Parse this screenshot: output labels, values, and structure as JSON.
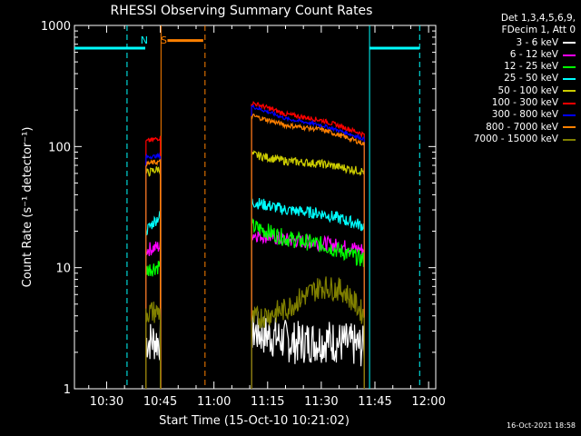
{
  "chart_data": {
    "type": "line",
    "title": "RHESSI Observing Summary Count Rates",
    "xlabel": "Start Time (15-Oct-10 10:21:02)",
    "ylabel": "Count Rate (s⁻¹ detector⁻¹)",
    "y_scale": "log",
    "ylim": [
      1,
      1000
    ],
    "y_ticks": [
      "1",
      "10",
      "100",
      "1000"
    ],
    "xlim_minutes_after_1030": [
      -9,
      92
    ],
    "x_ticks": [
      {
        "label": "10:30",
        "t": 0
      },
      {
        "label": "10:45",
        "t": 15
      },
      {
        "label": "11:00",
        "t": 30
      },
      {
        "label": "11:15",
        "t": 45
      },
      {
        "label": "11:30",
        "t": 60
      },
      {
        "label": "11:45",
        "t": 75
      },
      {
        "label": "12:00",
        "t": 90
      }
    ],
    "legend": {
      "header": [
        "Det 1,3,4,5,6,9,",
        "FDecim 1, Att 0"
      ],
      "placement": "top-right, outside plot"
    },
    "segments": [
      {
        "t_start": 11,
        "t_end": 15
      },
      {
        "t_start": 40.5,
        "t_end": 72
      }
    ],
    "series": [
      {
        "name": "3 - 6 keV",
        "color": "#ffffff",
        "noise": 0.18,
        "values": [
          [
            11,
            2.5
          ],
          [
            15,
            2.5
          ],
          [
            40.5,
            3.0
          ],
          [
            52,
            2.4
          ],
          [
            62,
            2.5
          ],
          [
            72,
            2.2
          ]
        ]
      },
      {
        "name": "6 - 12 keV",
        "color": "#ff00ff",
        "noise": 0.06,
        "values": [
          [
            11,
            14
          ],
          [
            15,
            15
          ],
          [
            40.5,
            19
          ],
          [
            50,
            17
          ],
          [
            60,
            16
          ],
          [
            72,
            14
          ]
        ]
      },
      {
        "name": "12 - 25 keV",
        "color": "#00ff00",
        "noise": 0.07,
        "values": [
          [
            11,
            9.5
          ],
          [
            15,
            10.5
          ],
          [
            40.5,
            22
          ],
          [
            50,
            17.5
          ],
          [
            60,
            15.5
          ],
          [
            72,
            11.5
          ]
        ]
      },
      {
        "name": "25 - 50 keV",
        "color": "#00ffff",
        "noise": 0.05,
        "values": [
          [
            11,
            20
          ],
          [
            15,
            27
          ],
          [
            40.5,
            35
          ],
          [
            50,
            30
          ],
          [
            60,
            28
          ],
          [
            72,
            22
          ]
        ]
      },
      {
        "name": "50 - 100 keV",
        "color": "#cccc00",
        "noise": 0.035,
        "values": [
          [
            11,
            60
          ],
          [
            15,
            66
          ],
          [
            40.5,
            86
          ],
          [
            50,
            76
          ],
          [
            60,
            72
          ],
          [
            72,
            62
          ]
        ]
      },
      {
        "name": "100 - 300 keV",
        "color": "#ff0000",
        "noise": 0.02,
        "values": [
          [
            11,
            110
          ],
          [
            15,
            118
          ],
          [
            40.5,
            230
          ],
          [
            50,
            185
          ],
          [
            60,
            165
          ],
          [
            72,
            125
          ]
        ]
      },
      {
        "name": "300 - 800 keV",
        "color": "#0000ff",
        "noise": 0.015,
        "values": [
          [
            11,
            82
          ],
          [
            15,
            84
          ],
          [
            40.5,
            215
          ],
          [
            50,
            170
          ],
          [
            60,
            150
          ],
          [
            72,
            115
          ]
        ]
      },
      {
        "name": "800 - 7000 keV",
        "color": "#ff8000",
        "noise": 0.02,
        "values": [
          [
            11,
            72
          ],
          [
            15,
            75
          ],
          [
            40.5,
            180
          ],
          [
            50,
            150
          ],
          [
            60,
            138
          ],
          [
            72,
            105
          ]
        ]
      },
      {
        "name": "7000 - 15000 keV",
        "color": "#808000",
        "noise": 0.1,
        "values": [
          [
            11,
            4.3
          ],
          [
            15,
            4.3
          ],
          [
            40.5,
            3.7
          ],
          [
            50,
            4.5
          ],
          [
            60,
            7.0
          ],
          [
            66,
            6.5
          ],
          [
            72,
            4.0
          ]
        ]
      }
    ],
    "annotations": [
      {
        "text": "N",
        "t": 10.5,
        "color": "#00ffff"
      },
      {
        "text": "S",
        "t": 16,
        "color": "#ff8000"
      }
    ],
    "night_intervals": [
      {
        "t_start": -9,
        "t_end": 10.8,
        "level": 650,
        "color": "#00ffff"
      },
      {
        "t_start": 73.5,
        "t_end": 87.5,
        "level": 650,
        "color": "#00ffff"
      }
    ],
    "saa_intervals": [
      {
        "t_start": 17,
        "t_end": 27,
        "level": 750,
        "color": "#ff8000"
      }
    ],
    "markers": [
      {
        "t": 5.7,
        "style": "dashed",
        "color": "#00ffff"
      },
      {
        "t": 15.2,
        "style": "solid",
        "color": "#ff8000"
      },
      {
        "t": 27.5,
        "style": "dashed",
        "color": "#ff8000"
      },
      {
        "t": 73.5,
        "style": "solid",
        "color": "#00ffff"
      },
      {
        "t": 87.5,
        "style": "dashed",
        "color": "#00ffff"
      }
    ]
  },
  "footer": {
    "timestamp": "16-Oct-2021 18:58"
  }
}
